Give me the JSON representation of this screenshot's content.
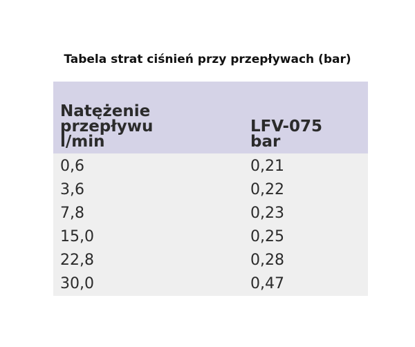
{
  "title": "Tabela strat ciśnień przy przepływach (bar)",
  "table": {
    "header": [
      [
        "Natężenie",
        "przepływu",
        "l/min"
      ],
      [
        "LFV-075",
        "bar"
      ]
    ],
    "rows": [
      [
        "0,6",
        "0,21"
      ],
      [
        "3,6",
        "0,22"
      ],
      [
        "7,8",
        "0,23"
      ],
      [
        "15,0",
        "0,25"
      ],
      [
        "22,8",
        "0,28"
      ],
      [
        "30,0",
        "0,47"
      ]
    ]
  }
}
